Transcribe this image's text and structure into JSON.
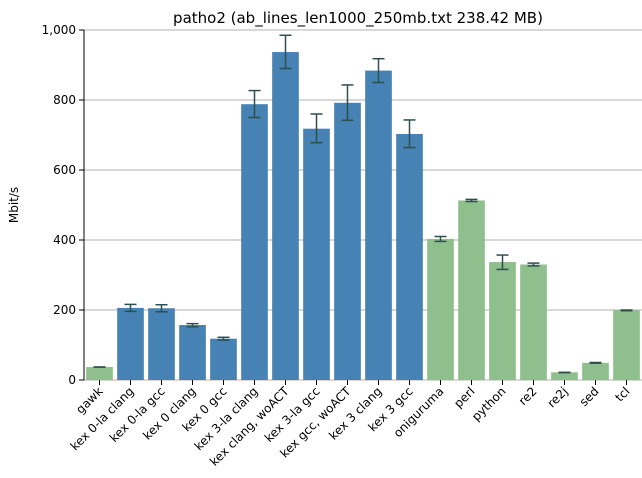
{
  "chart_data": {
    "type": "bar",
    "title": "patho2 (ab_lines_len1000_250mb.txt 238.42 MB)",
    "xlabel": "",
    "ylabel": "Mbit/s",
    "ylim": [
      0,
      1000
    ],
    "yticks": [
      0,
      200,
      400,
      600,
      800,
      1000
    ],
    "ytick_labels": [
      "0",
      "200",
      "400",
      "600",
      "800",
      "1,000"
    ],
    "grid": "horizontal",
    "categories": [
      "gawk",
      "kex 0-la clang",
      "kex 0-la gcc",
      "kex 0 clang",
      "kex 0 gcc",
      "kex 3-la clang",
      "kex clang, woACT",
      "kex 3-la gcc",
      "kex gcc, woACT",
      "kex 3 clang",
      "kex 3 gcc",
      "oniguruma",
      "perl",
      "python",
      "re2",
      "re2j",
      "sed",
      "tcl"
    ],
    "values": [
      37,
      206,
      205,
      157,
      118,
      788,
      937,
      718,
      792,
      884,
      703,
      403,
      513,
      337,
      330,
      22,
      49,
      199
    ],
    "error_low": [
      37,
      196,
      195,
      152,
      114,
      750,
      890,
      678,
      742,
      850,
      664,
      396,
      510,
      316,
      326,
      21,
      48,
      198
    ],
    "error_high": [
      37,
      216,
      215,
      161,
      122,
      827,
      985,
      760,
      843,
      918,
      743,
      410,
      516,
      357,
      334,
      22,
      50,
      200
    ],
    "colors": [
      "#8fbf8c",
      "#4682b4",
      "#4682b4",
      "#4682b4",
      "#4682b4",
      "#4682b4",
      "#4682b4",
      "#4682b4",
      "#4682b4",
      "#4682b4",
      "#4682b4",
      "#8fbf8c",
      "#8fbf8c",
      "#8fbf8c",
      "#8fbf8c",
      "#8fbf8c",
      "#8fbf8c",
      "#8fbf8c"
    ],
    "error_bar_color": "#2f4f4f",
    "grid_color": "#b0b0b0"
  }
}
